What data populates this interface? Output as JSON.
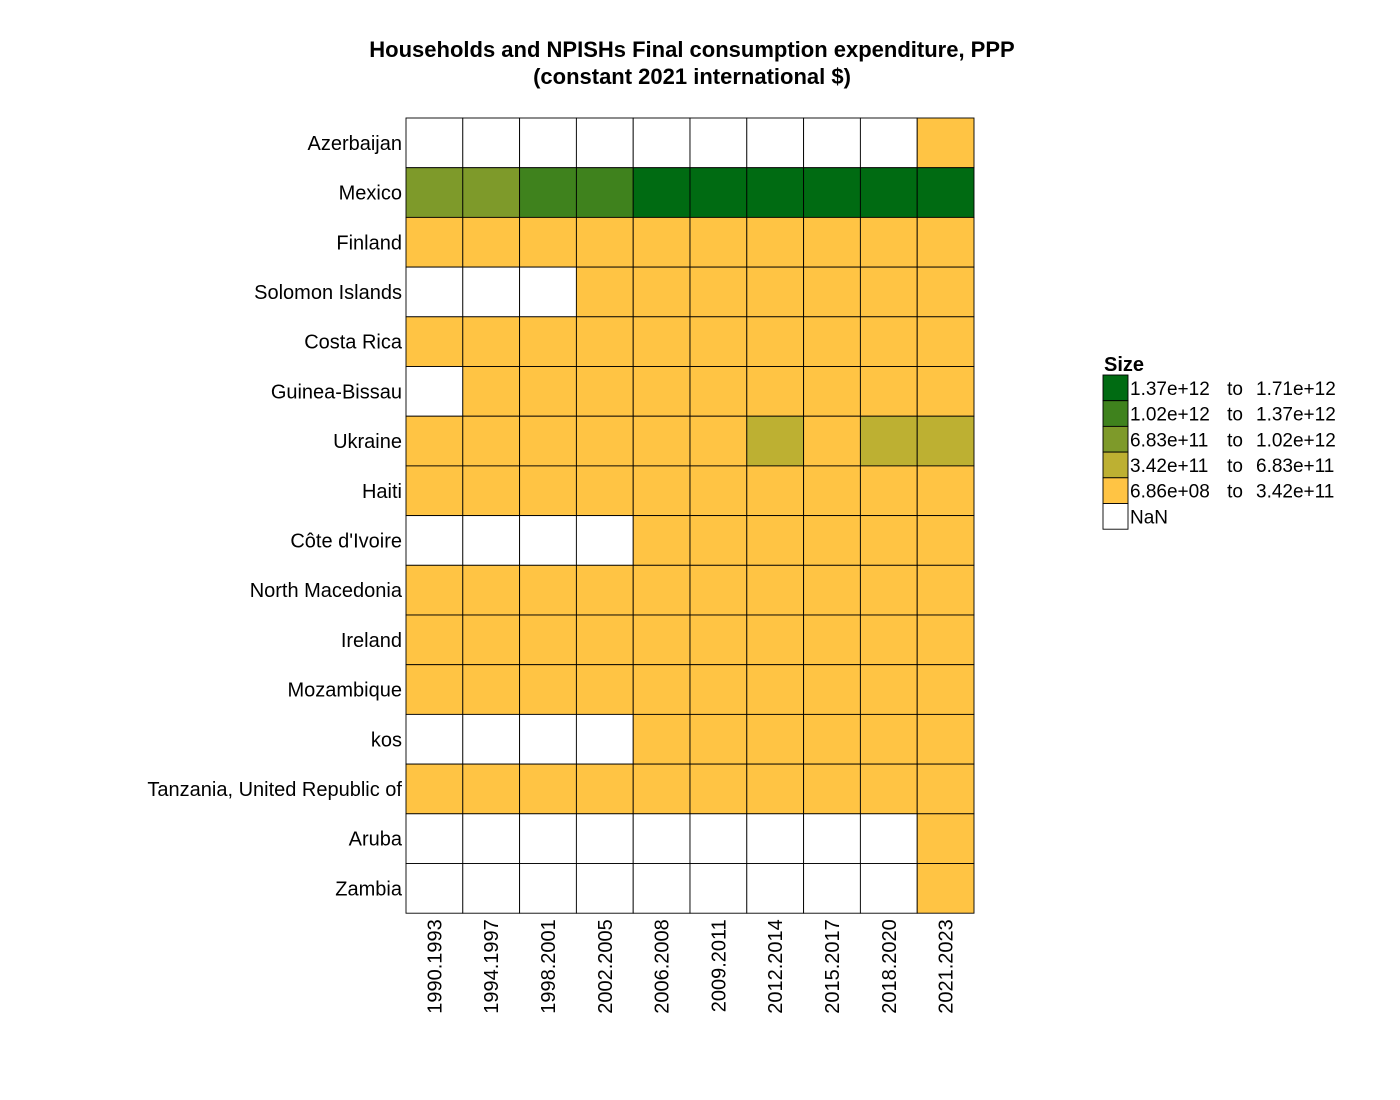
{
  "chart_data": {
    "type": "heatmap",
    "title": "Households and NPISHs Final consumption expenditure, PPP",
    "subtitle": "(constant 2021 international $)",
    "xlabel": "",
    "ylabel": "",
    "x_categories": [
      "1990.1993",
      "1994.1997",
      "1998.2001",
      "2002.2005",
      "2006.2008",
      "2009.2011",
      "2012.2014",
      "2015.2017",
      "2018.2020",
      "2021.2023"
    ],
    "y_categories": [
      "Azerbaijan",
      "Mexico",
      "Finland",
      "Solomon Islands",
      "Costa Rica",
      "Guinea-Bissau",
      "Ukraine",
      "Haiti",
      "Côte d'Ivoire",
      "North Macedonia",
      "Ireland",
      "Mozambique",
      "kos",
      "Tanzania, United Republic of",
      "Aruba",
      "Zambia"
    ],
    "bin_index_matrix": [
      [
        null,
        null,
        null,
        null,
        null,
        null,
        null,
        null,
        null,
        0
      ],
      [
        2,
        2,
        3,
        3,
        4,
        4,
        4,
        4,
        4,
        4
      ],
      [
        0,
        0,
        0,
        0,
        0,
        0,
        0,
        0,
        0,
        0
      ],
      [
        null,
        null,
        null,
        0,
        0,
        0,
        0,
        0,
        0,
        0
      ],
      [
        0,
        0,
        0,
        0,
        0,
        0,
        0,
        0,
        0,
        0
      ],
      [
        null,
        0,
        0,
        0,
        0,
        0,
        0,
        0,
        0,
        0
      ],
      [
        0,
        0,
        0,
        0,
        0,
        0,
        1,
        0,
        1,
        1
      ],
      [
        0,
        0,
        0,
        0,
        0,
        0,
        0,
        0,
        0,
        0
      ],
      [
        null,
        null,
        null,
        null,
        0,
        0,
        0,
        0,
        0,
        0
      ],
      [
        0,
        0,
        0,
        0,
        0,
        0,
        0,
        0,
        0,
        0
      ],
      [
        0,
        0,
        0,
        0,
        0,
        0,
        0,
        0,
        0,
        0
      ],
      [
        0,
        0,
        0,
        0,
        0,
        0,
        0,
        0,
        0,
        0
      ],
      [
        null,
        null,
        null,
        null,
        0,
        0,
        0,
        0,
        0,
        0
      ],
      [
        0,
        0,
        0,
        0,
        0,
        0,
        0,
        0,
        0,
        0
      ],
      [
        null,
        null,
        null,
        null,
        null,
        null,
        null,
        null,
        null,
        0
      ],
      [
        null,
        null,
        null,
        null,
        null,
        null,
        null,
        null,
        null,
        0
      ]
    ],
    "legend": {
      "title": "Size",
      "position": "right",
      "bins": [
        {
          "low": "6.86e+08",
          "high": "3.42e+11",
          "color": "#FFC444"
        },
        {
          "low": "3.42e+11",
          "high": "6.83e+11",
          "color": "#BDB032"
        },
        {
          "low": "6.83e+11",
          "high": "1.02e+12",
          "color": "#7E9A2A"
        },
        {
          "low": "1.02e+12",
          "high": "1.37e+12",
          "color": "#3F821D"
        },
        {
          "low": "1.37e+12",
          "high": "1.71e+12",
          "color": "#006B12"
        }
      ],
      "range_word": "to",
      "nan_label": "NaN",
      "nan_color": "#FFFFFF"
    },
    "grid": false
  }
}
